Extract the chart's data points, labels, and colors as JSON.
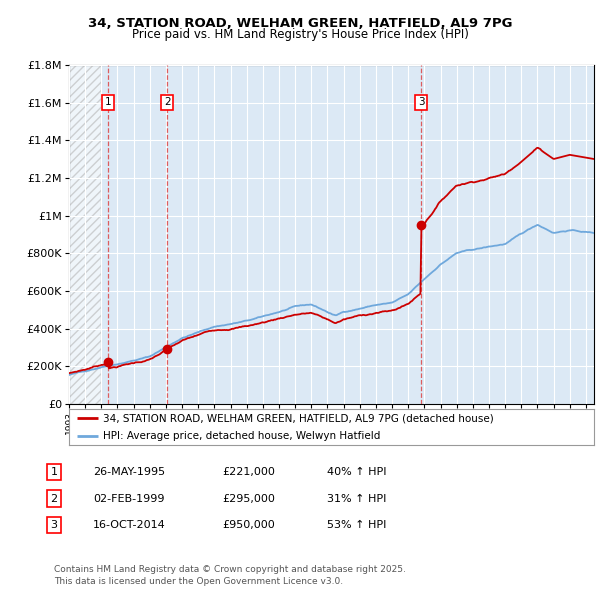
{
  "title1": "34, STATION ROAD, WELHAM GREEN, HATFIELD, AL9 7PG",
  "title2": "Price paid vs. HM Land Registry's House Price Index (HPI)",
  "background_color": "#ffffff",
  "plot_bg_color": "#dce9f5",
  "grid_color": "#ffffff",
  "sale_dates": [
    1995.4,
    1999.09,
    2014.79
  ],
  "sale_prices": [
    221000,
    295000,
    950000
  ],
  "sale_labels": [
    "1",
    "2",
    "3"
  ],
  "legend_line1": "34, STATION ROAD, WELHAM GREEN, HATFIELD, AL9 7PG (detached house)",
  "legend_line2": "HPI: Average price, detached house, Welwyn Hatfield",
  "table_data": [
    [
      "1",
      "26-MAY-1995",
      "£221,000",
      "40% ↑ HPI"
    ],
    [
      "2",
      "02-FEB-1999",
      "£295,000",
      "31% ↑ HPI"
    ],
    [
      "3",
      "16-OCT-2014",
      "£950,000",
      "53% ↑ HPI"
    ]
  ],
  "footer": "Contains HM Land Registry data © Crown copyright and database right 2025.\nThis data is licensed under the Open Government Licence v3.0.",
  "ylim": [
    0,
    1800000
  ],
  "xlim_start": 1993.0,
  "xlim_end": 2025.5,
  "hpi_line_color": "#6fa8dc",
  "price_line_color": "#cc0000",
  "dot_color": "#cc0000",
  "vline_color": "#dd4444"
}
